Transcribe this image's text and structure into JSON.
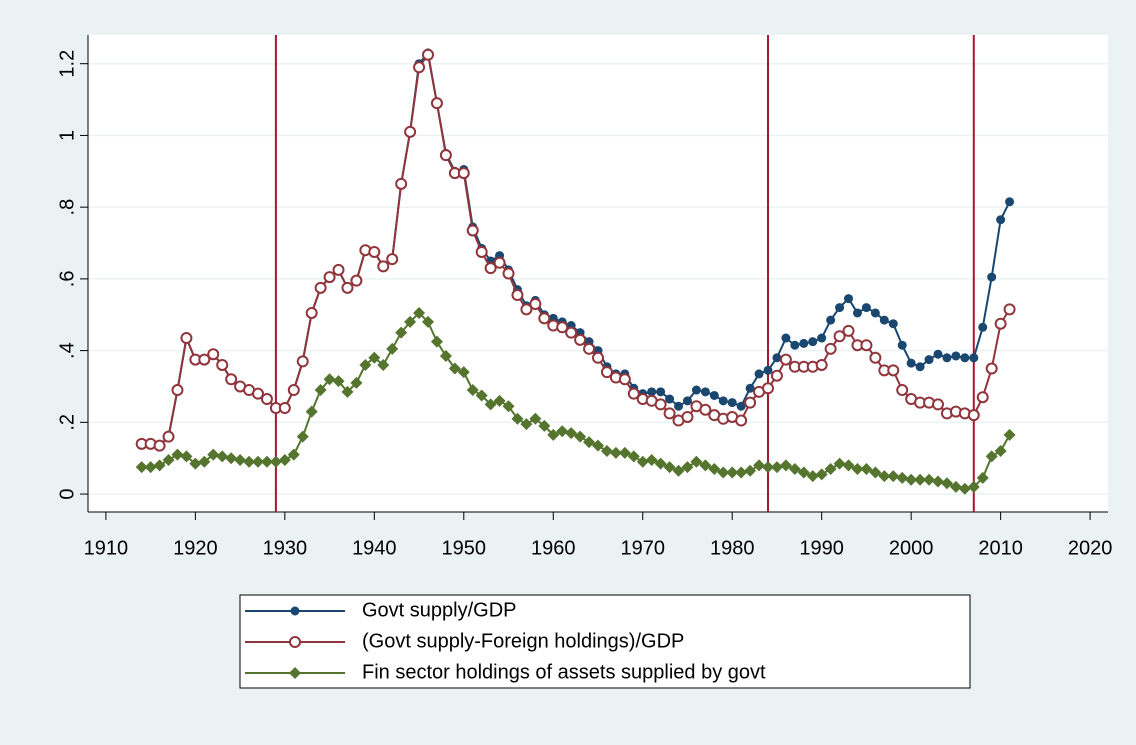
{
  "chart_data": {
    "type": "line",
    "x": [
      1914,
      1915,
      1916,
      1917,
      1918,
      1919,
      1920,
      1921,
      1922,
      1923,
      1924,
      1925,
      1926,
      1927,
      1928,
      1929,
      1930,
      1931,
      1932,
      1933,
      1934,
      1935,
      1936,
      1937,
      1938,
      1939,
      1940,
      1941,
      1942,
      1943,
      1944,
      1945,
      1946,
      1947,
      1948,
      1949,
      1950,
      1951,
      1952,
      1953,
      1954,
      1955,
      1956,
      1957,
      1958,
      1959,
      1960,
      1961,
      1962,
      1963,
      1964,
      1965,
      1966,
      1967,
      1968,
      1969,
      1970,
      1971,
      1972,
      1973,
      1974,
      1975,
      1976,
      1977,
      1978,
      1979,
      1980,
      1981,
      1982,
      1983,
      1984,
      1985,
      1986,
      1987,
      1988,
      1989,
      1990,
      1991,
      1992,
      1993,
      1994,
      1995,
      1996,
      1997,
      1998,
      1999,
      2000,
      2001,
      2002,
      2003,
      2004,
      2005,
      2006,
      2007,
      2008,
      2009,
      2010,
      2011
    ],
    "series": [
      {
        "name": "Govt supply/GDP",
        "color": "#1a476f",
        "marker": "dot",
        "values": [
          0.14,
          0.14,
          0.135,
          0.16,
          0.29,
          0.435,
          0.375,
          0.375,
          0.39,
          0.36,
          0.32,
          0.3,
          0.29,
          0.28,
          0.265,
          0.24,
          0.24,
          0.29,
          0.37,
          0.505,
          0.575,
          0.605,
          0.625,
          0.575,
          0.595,
          0.68,
          0.675,
          0.635,
          0.655,
          0.865,
          1.01,
          1.2,
          1.23,
          1.09,
          0.95,
          0.9,
          0.905,
          0.745,
          0.685,
          0.65,
          0.665,
          0.625,
          0.57,
          0.525,
          0.54,
          0.5,
          0.49,
          0.48,
          0.47,
          0.45,
          0.425,
          0.4,
          0.355,
          0.335,
          0.335,
          0.295,
          0.28,
          0.285,
          0.285,
          0.265,
          0.245,
          0.26,
          0.29,
          0.285,
          0.275,
          0.26,
          0.255,
          0.245,
          0.295,
          0.335,
          0.345,
          0.38,
          0.435,
          0.415,
          0.42,
          0.425,
          0.435,
          0.485,
          0.52,
          0.545,
          0.505,
          0.52,
          0.505,
          0.485,
          0.475,
          0.415,
          0.365,
          0.355,
          0.375,
          0.39,
          0.38,
          0.385,
          0.38,
          0.38,
          0.465,
          0.605,
          0.765,
          0.815
        ]
      },
      {
        "name": "(Govt supply-Foreign holdings)/GDP",
        "color": "#90353b",
        "marker": "hollow",
        "values": [
          0.14,
          0.14,
          0.135,
          0.16,
          0.29,
          0.435,
          0.375,
          0.375,
          0.39,
          0.36,
          0.32,
          0.3,
          0.29,
          0.28,
          0.265,
          0.24,
          0.24,
          0.29,
          0.37,
          0.505,
          0.575,
          0.605,
          0.625,
          0.575,
          0.595,
          0.68,
          0.675,
          0.635,
          0.655,
          0.865,
          1.01,
          1.19,
          1.225,
          1.09,
          0.945,
          0.895,
          0.895,
          0.735,
          0.675,
          0.63,
          0.645,
          0.615,
          0.555,
          0.515,
          0.53,
          0.49,
          0.47,
          0.465,
          0.45,
          0.43,
          0.405,
          0.38,
          0.34,
          0.325,
          0.32,
          0.28,
          0.265,
          0.26,
          0.25,
          0.225,
          0.205,
          0.215,
          0.245,
          0.235,
          0.22,
          0.21,
          0.215,
          0.205,
          0.255,
          0.285,
          0.295,
          0.33,
          0.375,
          0.355,
          0.355,
          0.355,
          0.36,
          0.405,
          0.44,
          0.455,
          0.415,
          0.415,
          0.38,
          0.345,
          0.345,
          0.29,
          0.265,
          0.255,
          0.255,
          0.25,
          0.225,
          0.23,
          0.225,
          0.22,
          0.27,
          0.35,
          0.475,
          0.515
        ]
      },
      {
        "name": "Fin sector holdings of assets supplied by govt",
        "color": "#55752f",
        "marker": "diamond",
        "values": [
          0.075,
          0.075,
          0.08,
          0.095,
          0.11,
          0.105,
          0.085,
          0.09,
          0.11,
          0.105,
          0.1,
          0.095,
          0.09,
          0.09,
          0.09,
          0.09,
          0.095,
          0.11,
          0.16,
          0.23,
          0.29,
          0.32,
          0.315,
          0.285,
          0.31,
          0.36,
          0.38,
          0.36,
          0.405,
          0.45,
          0.48,
          0.505,
          0.48,
          0.425,
          0.385,
          0.35,
          0.34,
          0.29,
          0.275,
          0.25,
          0.26,
          0.245,
          0.21,
          0.195,
          0.21,
          0.19,
          0.165,
          0.175,
          0.17,
          0.16,
          0.145,
          0.135,
          0.12,
          0.115,
          0.115,
          0.105,
          0.09,
          0.095,
          0.085,
          0.075,
          0.065,
          0.075,
          0.09,
          0.08,
          0.07,
          0.06,
          0.06,
          0.06,
          0.065,
          0.08,
          0.075,
          0.075,
          0.08,
          0.07,
          0.06,
          0.05,
          0.055,
          0.07,
          0.085,
          0.08,
          0.07,
          0.07,
          0.06,
          0.05,
          0.05,
          0.045,
          0.04,
          0.04,
          0.04,
          0.035,
          0.03,
          0.02,
          0.015,
          0.02,
          0.045,
          0.105,
          0.12,
          0.165
        ]
      }
    ],
    "xlim": [
      1908,
      2022
    ],
    "xticks": [
      1910,
      1920,
      1930,
      1940,
      1950,
      1960,
      1970,
      1980,
      1990,
      2000,
      2010,
      2020
    ],
    "ylim": [
      -0.05,
      1.28
    ],
    "yticks": [
      0,
      {
        "value": 0.2,
        "label": ".2"
      },
      {
        "value": 0.4,
        "label": ".4"
      },
      {
        "value": 0.6,
        "label": ".6"
      },
      {
        "value": 0.8,
        "label": ".8"
      },
      1,
      1.2
    ],
    "xlines": [
      1929,
      1984,
      2007
    ],
    "xline_color": "#a0192f",
    "grid": true,
    "legend": "bottom"
  }
}
